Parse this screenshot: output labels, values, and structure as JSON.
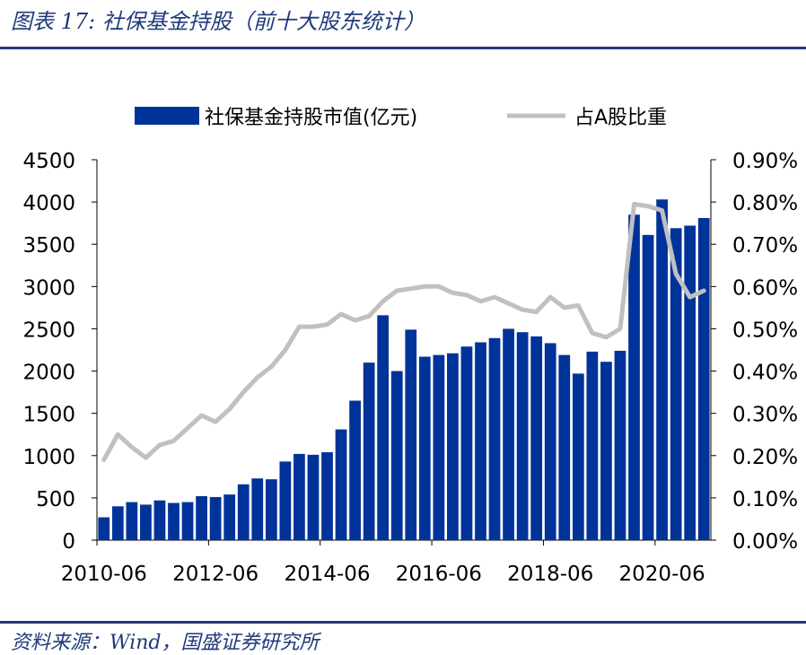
{
  "header": {
    "title": "图表 17: 社保基金持股（前十大股东统计）"
  },
  "footer": {
    "source": "资料来源：Wind，国盛证券研究所"
  },
  "colors": {
    "bar": "#003399",
    "line": "#c0c0c0",
    "rule": "#1f3a7a"
  },
  "chart_data": {
    "type": "bar",
    "title": "",
    "legend_position": "top",
    "grid": false,
    "x_tick_labels": [
      "2010-06",
      "2012-06",
      "2014-06",
      "2016-06",
      "2018-06",
      "2020-06"
    ],
    "x_tick_period_index": [
      0,
      8,
      16,
      24,
      32,
      40
    ],
    "periods": 44,
    "left_axis": {
      "min": 0,
      "max": 4500,
      "ticks": [
        "0",
        "500",
        "1000",
        "1500",
        "2000",
        "2500",
        "3000",
        "3500",
        "4000",
        "4500"
      ]
    },
    "right_axis": {
      "min": 0,
      "max": 0.9,
      "ticks": [
        "0.00%",
        "0.10%",
        "0.20%",
        "0.30%",
        "0.40%",
        "0.50%",
        "0.60%",
        "0.70%",
        "0.80%",
        "0.90%"
      ]
    },
    "series": [
      {
        "name": "社保基金持股市值(亿元)",
        "type": "bar",
        "axis": "left",
        "values": [
          270,
          400,
          450,
          420,
          470,
          440,
          450,
          520,
          510,
          540,
          660,
          730,
          720,
          930,
          1020,
          1010,
          1040,
          1310,
          1650,
          2100,
          2660,
          2000,
          2490,
          2170,
          2190,
          2210,
          2290,
          2340,
          2390,
          2500,
          2460,
          2410,
          2330,
          2190,
          1970,
          2230,
          2110,
          2240,
          3850,
          3610,
          4030,
          3690,
          3720,
          3810
        ]
      },
      {
        "name": "占A股比重",
        "type": "line",
        "axis": "right",
        "values": [
          0.19,
          0.25,
          0.22,
          0.195,
          0.225,
          0.235,
          0.265,
          0.295,
          0.28,
          0.31,
          0.35,
          0.385,
          0.41,
          0.45,
          0.505,
          0.505,
          0.51,
          0.535,
          0.52,
          0.53,
          0.565,
          0.59,
          0.595,
          0.6,
          0.6,
          0.585,
          0.58,
          0.565,
          0.575,
          0.56,
          0.545,
          0.54,
          0.575,
          0.55,
          0.555,
          0.49,
          0.48,
          0.5,
          0.795,
          0.79,
          0.78,
          0.63,
          0.575,
          0.59
        ]
      }
    ]
  }
}
